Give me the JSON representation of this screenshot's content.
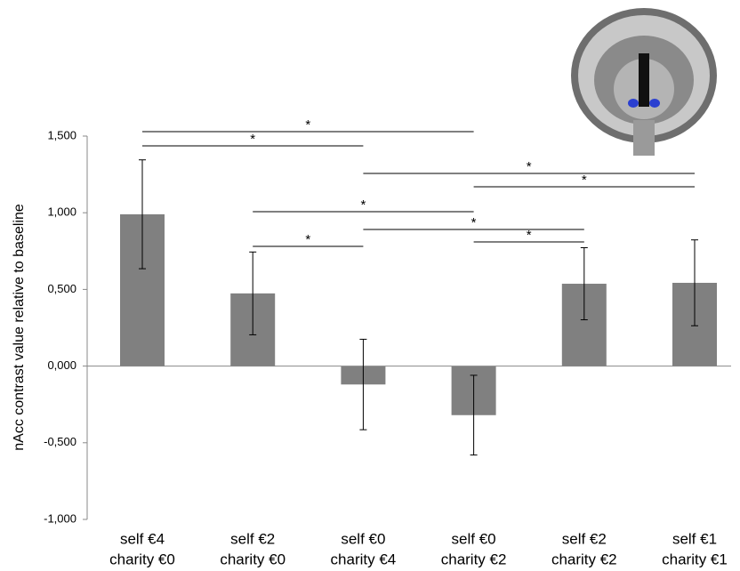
{
  "chart_data": {
    "type": "bar",
    "y_label": "nAcc contrast value relative to baseline",
    "categories": [
      [
        "self €4",
        "charity €0"
      ],
      [
        "self €2",
        "charity €0"
      ],
      [
        "self €0",
        "charity €4"
      ],
      [
        "self €0",
        "charity €2"
      ],
      [
        "self €2",
        "charity €2"
      ],
      [
        "self €1",
        "charity €1"
      ]
    ],
    "values": [
      0.99,
      0.474,
      -0.12,
      -0.32,
      0.537,
      0.543
    ],
    "errors": [
      0.355,
      0.27,
      0.295,
      0.26,
      0.235,
      0.28
    ],
    "color": "#808080",
    "ylim": [
      -1,
      1.5
    ],
    "yticks": [
      {
        "value": -1,
        "label": "-1,000"
      },
      {
        "value": -0.5,
        "label": "-0,500"
      },
      {
        "value": 0,
        "label": "0,000"
      },
      {
        "value": 0.5,
        "label": "0,500"
      },
      {
        "value": 1,
        "label": "1,000"
      },
      {
        "value": 1.5,
        "label": "1,500"
      }
    ],
    "comparisons": [
      {
        "from": 0,
        "to": 3,
        "label": "*"
      },
      {
        "from": 0,
        "to": 2,
        "label": "*"
      },
      {
        "from": 2,
        "to": 5,
        "label": "*"
      },
      {
        "from": 3,
        "to": 5,
        "label": "*"
      },
      {
        "from": 1,
        "to": 3,
        "label": "*"
      },
      {
        "from": 2,
        "to": 4,
        "label": "*"
      },
      {
        "from": 3,
        "to": 4,
        "label": "*"
      },
      {
        "from": 1,
        "to": 2,
        "label": "*"
      }
    ]
  }
}
